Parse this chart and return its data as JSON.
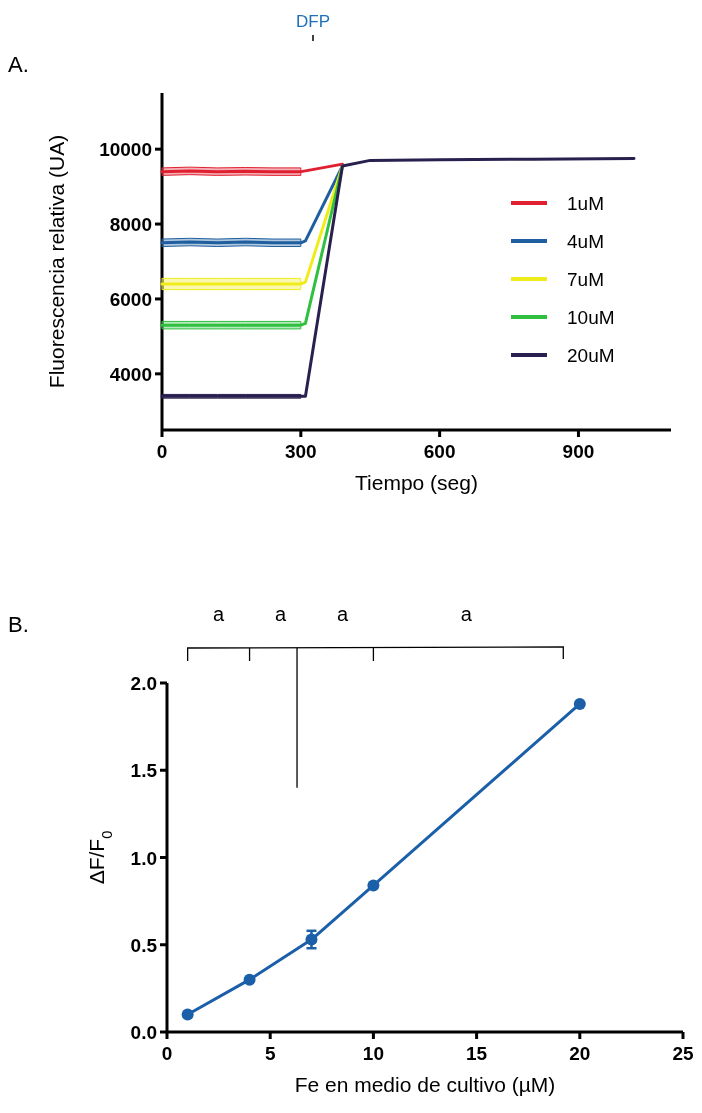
{
  "chart_data": [
    {
      "type": "line",
      "title": "A.",
      "xlabel": "Tiempo (seg)",
      "ylabel": "Fluorescencia relativa (UA)",
      "annotations": [
        "DFP"
      ],
      "x": [
        0,
        60,
        120,
        180,
        240,
        300,
        310,
        390,
        450,
        600,
        800,
        1020
      ],
      "series": [
        {
          "name": "1uM",
          "color": "#e02030",
          "values": [
            9400,
            9420,
            9400,
            9410,
            9400,
            9400,
            9420,
            9600,
            null,
            null,
            null,
            null
          ],
          "lower": [
            9300,
            9320,
            9300,
            9310,
            9300,
            9300,
            null,
            null,
            null,
            null,
            null,
            null
          ],
          "upper": [
            9500,
            9520,
            9500,
            9510,
            9500,
            9500,
            null,
            null,
            null,
            null,
            null,
            null
          ]
        },
        {
          "name": "4uM",
          "color": "#1f5fa0",
          "values": [
            7500,
            7520,
            7500,
            7520,
            7500,
            7500,
            7550,
            9550,
            null,
            null,
            null,
            null
          ],
          "lower": [
            7400,
            7420,
            7400,
            7420,
            7400,
            7400,
            null,
            null,
            null,
            null,
            null,
            null
          ],
          "upper": [
            7600,
            7620,
            7600,
            7620,
            7600,
            7600,
            null,
            null,
            null,
            null,
            null,
            null
          ]
        },
        {
          "name": "7uM",
          "color": "#f0ec1c",
          "values": [
            6400,
            6400,
            6400,
            6400,
            6400,
            6400,
            6450,
            9550,
            null,
            null,
            null,
            null
          ],
          "lower": [
            6250,
            6250,
            6250,
            6250,
            6250,
            6250,
            null,
            null,
            null,
            null,
            null,
            null
          ],
          "upper": [
            6550,
            6550,
            6550,
            6550,
            6550,
            6550,
            null,
            null,
            null,
            null,
            null,
            null
          ]
        },
        {
          "name": "10uM",
          "color": "#30c040",
          "values": [
            5300,
            5300,
            5300,
            5300,
            5300,
            5300,
            5350,
            9550,
            null,
            null,
            null,
            null
          ],
          "lower": [
            5200,
            5200,
            5200,
            5200,
            5200,
            5200,
            null,
            null,
            null,
            null,
            null,
            null
          ],
          "upper": [
            5400,
            5400,
            5400,
            5400,
            5400,
            5400,
            null,
            null,
            null,
            null,
            null,
            null
          ]
        },
        {
          "name": "20uM",
          "color": "#2a2050",
          "values": [
            3400,
            3400,
            3400,
            3400,
            3400,
            3400,
            3400,
            9550,
            9700,
            9720,
            9730,
            9750
          ],
          "lower": [
            3350,
            3350,
            3350,
            3350,
            3350,
            3350,
            null,
            null,
            null,
            null,
            null,
            null
          ],
          "upper": [
            3450,
            3450,
            3450,
            3450,
            3450,
            3450,
            null,
            null,
            null,
            null,
            null,
            null
          ]
        }
      ],
      "xlim": [
        0,
        1100
      ],
      "ylim": [
        2500,
        11500
      ],
      "xticks": [
        0,
        300,
        600,
        900
      ],
      "yticks": [
        4000,
        6000,
        8000,
        10000
      ],
      "legend": "right",
      "marker": "none",
      "grid": false
    },
    {
      "type": "line",
      "title": "B.",
      "xlabel": "Fe en medio de cultivo (µM)",
      "ylabel": "ΔF/F$_{0}$",
      "annotations": [
        "a",
        "a",
        "a",
        "a"
      ],
      "x": [
        1,
        4,
        7,
        10,
        20
      ],
      "series": [
        {
          "color": "#1a5fa8",
          "values": [
            0.1,
            0.3,
            0.53,
            0.84,
            1.88
          ],
          "errors": [
            null,
            null,
            0.05,
            null,
            null
          ]
        }
      ],
      "xlim": [
        0,
        25
      ],
      "ylim": [
        0,
        2
      ],
      "xticks": [
        0,
        5,
        10,
        15,
        20,
        25
      ],
      "yticks": [
        {
          "value": 0,
          "label": "0.0"
        },
        0.5,
        {
          "value": 1,
          "label": "1.0"
        },
        1.5,
        {
          "value": 2,
          "label": "2.0"
        }
      ],
      "marker": "circle",
      "legend": false,
      "grid": false
    }
  ]
}
